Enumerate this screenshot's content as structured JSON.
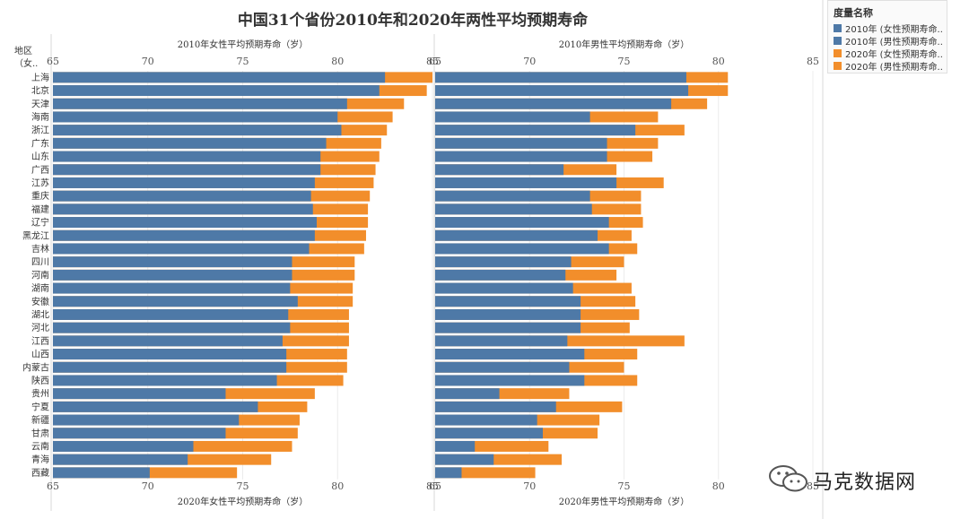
{
  "title": "中国31个省份2010年和2020年两性平均预期寿命",
  "row_header": {
    "line1": "地区",
    "line2": "（女.."
  },
  "legend": {
    "title": "度量名称",
    "items": [
      {
        "label": "2010年 (女性预期寿命..",
        "color": "#4e79a7"
      },
      {
        "label": "2010年 (男性预期寿命..",
        "color": "#4e79a7"
      },
      {
        "label": "2020年 (女性预期寿命..",
        "color": "#f28e2b"
      },
      {
        "label": "2020年 (男性预期寿命..",
        "color": "#f28e2b"
      }
    ]
  },
  "watermark": {
    "text": "马克数据网",
    "icon": "wechat-icon"
  },
  "chart_data": {
    "type": "bar",
    "orientation": "horizontal",
    "overlay": true,
    "colors": {
      "2010": "#4e79a7",
      "2020": "#f28e2b"
    },
    "categories": [
      "上海",
      "北京",
      "天津",
      "海南",
      "浙江",
      "广东",
      "山东",
      "广西",
      "江苏",
      "重庆",
      "福建",
      "辽宁",
      "黑龙江",
      "吉林",
      "四川",
      "河南",
      "湖南",
      "安徽",
      "湖北",
      "河北",
      "江西",
      "山西",
      "内蒙古",
      "陕西",
      "贵州",
      "宁夏",
      "新疆",
      "甘肃",
      "云南",
      "青海",
      "西藏"
    ],
    "panels": [
      {
        "name": "female",
        "top_axis_label": "2010年女性平均预期寿命（岁）",
        "bottom_axis_label": "2020年女性平均预期寿命（岁）",
        "xlim": [
          65,
          85
        ],
        "ticks": [
          65,
          70,
          75,
          80,
          85
        ],
        "series": [
          {
            "name": "2020年 (女性预期寿命..",
            "values": [
              85.0,
              84.7,
              83.5,
              82.9,
              82.6,
              82.3,
              82.2,
              82.0,
              81.9,
              81.7,
              81.6,
              81.6,
              81.5,
              81.4,
              80.9,
              80.9,
              80.8,
              80.8,
              80.6,
              80.6,
              80.6,
              80.5,
              80.5,
              80.3,
              78.8,
              78.4,
              78.0,
              77.9,
              77.6,
              76.5,
              74.7
            ]
          },
          {
            "name": "2010年 (女性预期寿命..",
            "values": [
              82.5,
              82.2,
              80.5,
              80.0,
              80.2,
              79.4,
              79.1,
              79.1,
              78.8,
              78.6,
              78.7,
              78.9,
              78.8,
              78.5,
              77.6,
              77.6,
              77.5,
              77.9,
              77.4,
              77.5,
              77.1,
              77.3,
              77.3,
              76.8,
              74.1,
              75.8,
              74.8,
              74.1,
              72.4,
              72.1,
              70.1
            ]
          }
        ]
      },
      {
        "name": "male",
        "top_axis_label": "2010年男性平均预期寿命（岁）",
        "bottom_axis_label": "2020年男性平均预期寿命（岁）",
        "xlim": [
          65,
          85
        ],
        "ticks": [
          65,
          70,
          75,
          80,
          85
        ],
        "series": [
          {
            "name": "2020年 (男性预期寿命..",
            "values": [
              80.5,
              80.5,
              79.4,
              76.8,
              78.2,
              76.8,
              76.5,
              74.6,
              77.1,
              75.9,
              75.9,
              76.0,
              75.4,
              75.7,
              75.0,
              74.6,
              75.4,
              75.6,
              75.8,
              75.3,
              78.2,
              75.7,
              75.0,
              75.7,
              72.1,
              74.9,
              73.7,
              73.6,
              71.0,
              71.7,
              70.3
            ]
          },
          {
            "name": "2010年 (男性预期寿命..",
            "values": [
              78.3,
              78.4,
              77.5,
              73.2,
              75.6,
              74.1,
              74.1,
              71.8,
              74.6,
              73.2,
              73.3,
              74.2,
              73.6,
              74.2,
              72.2,
              71.9,
              72.3,
              72.7,
              72.7,
              72.7,
              72.0,
              72.9,
              72.1,
              72.9,
              68.4,
              71.4,
              70.4,
              70.7,
              67.1,
              68.1,
              66.4
            ]
          }
        ]
      }
    ]
  }
}
